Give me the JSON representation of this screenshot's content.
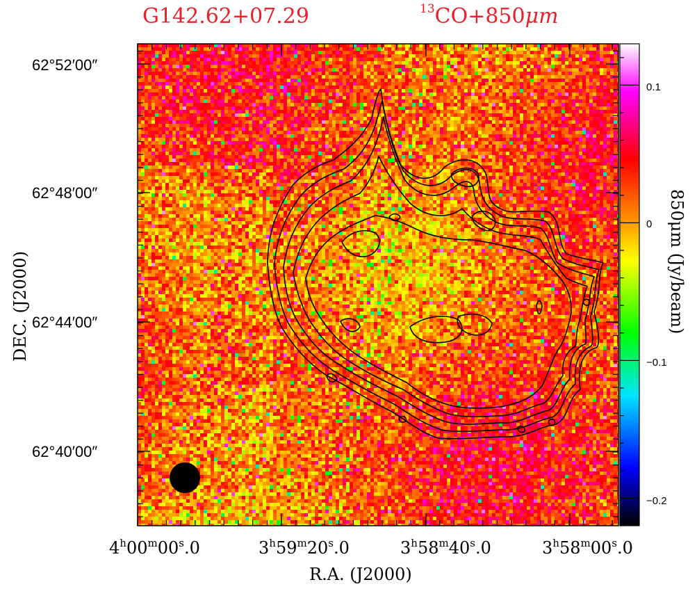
{
  "chart_data": {
    "type": "heatmap",
    "title_source": "G142.62+07.29",
    "title_tracer": {
      "sup": "13",
      "text": "CO+850",
      "unit": "μm"
    },
    "xlabel": "R.A. (J2000)",
    "ylabel": "DEC. (J2000)",
    "colorbar_label": "850μm (Jy/beam)",
    "colorbar_range": [
      -0.22,
      0.13
    ],
    "colorbar_ticks": [
      {
        "value": 0.1,
        "label": "0.1"
      },
      {
        "value": 0.0,
        "label": "0"
      },
      {
        "value": -0.1,
        "label": "−0.1"
      },
      {
        "value": -0.2,
        "label": "−0.2"
      }
    ],
    "colormap": [
      "#000000",
      "#0000ff",
      "#00e5ff",
      "#00ff00",
      "#ffff00",
      "#ff8c00",
      "#ff0000",
      "#ff00ff",
      "#ffffff"
    ],
    "x_ticks": [
      {
        "h": "4",
        "m": "00",
        "s": "00",
        "frac": ".0"
      },
      {
        "h": "3",
        "m": "59",
        "s": "20",
        "frac": ".0"
      },
      {
        "h": "3",
        "m": "58",
        "s": "40",
        "frac": ".0"
      },
      {
        "h": "3",
        "m": "58",
        "s": "00",
        "frac": ".0"
      }
    ],
    "y_ticks": [
      {
        "label": "62°52′00″"
      },
      {
        "label": "62°48′00″"
      },
      {
        "label": "62°44′00″"
      },
      {
        "label": "62°40′00″"
      }
    ],
    "beam": "circle, lower-left",
    "contours": "13CO integrated intensity (black lines)"
  }
}
